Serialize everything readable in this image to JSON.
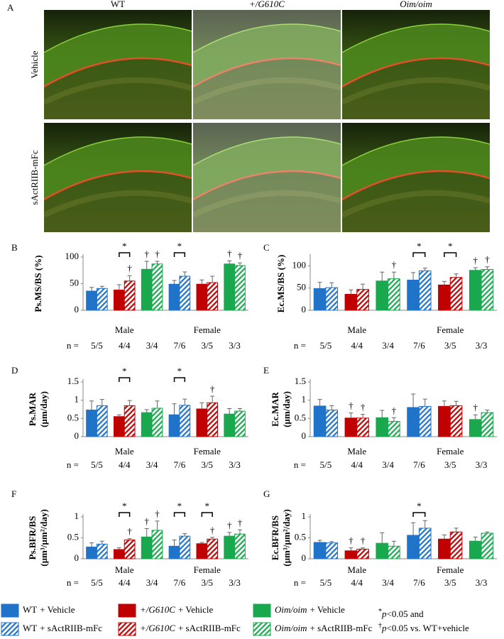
{
  "panel_a": {
    "label": "A",
    "columns": [
      {
        "text": "WT",
        "italic": false
      },
      {
        "text": "+/G610C",
        "italic": true
      },
      {
        "text": "Oim/oim",
        "italic": true
      }
    ],
    "rows": [
      "Vehicle",
      "sActRIIB-mFc"
    ]
  },
  "chart_data": [
    {
      "type": "bar",
      "label": "B",
      "ylabel": [
        "Ps.MS/BS (%)"
      ],
      "ylim": [
        0,
        100
      ],
      "yticks": [
        0,
        50,
        100
      ],
      "n_label": "n =",
      "categories": [
        "5/5",
        "4/4",
        "3/4",
        "7/6",
        "3/5",
        "3/3"
      ],
      "groups": [
        "Male",
        "Female"
      ],
      "colors": [
        "#1f73c8",
        "#c00000",
        "#1aa84e",
        "#1f73c8",
        "#c00000",
        "#1aa84e"
      ],
      "series": [
        {
          "values": [
            36,
            38,
            77,
            49,
            49,
            87
          ],
          "errors": [
            7,
            10,
            15,
            7,
            8,
            6
          ]
        },
        {
          "values": [
            41,
            55,
            87,
            64,
            52,
            84
          ],
          "errors": [
            4,
            10,
            5,
            8,
            12,
            5
          ],
          "hatch": true
        }
      ],
      "significance": [
        {
          "label": "*",
          "category": 1
        },
        {
          "label": "*",
          "category": 3
        }
      ],
      "daggers": [
        {
          "label": "†",
          "category": 1,
          "series": 1
        },
        {
          "label": "†",
          "category": 2,
          "series": 0
        },
        {
          "label": "†",
          "category": 2,
          "series": 1
        },
        {
          "label": "†",
          "category": 5,
          "series": 0
        },
        {
          "label": "†",
          "category": 5,
          "series": 1
        }
      ]
    },
    {
      "type": "bar",
      "label": "C",
      "ylabel": [
        "Ec.MS/BS (%)"
      ],
      "ylim": [
        0,
        120
      ],
      "yticks": [
        0,
        50,
        100
      ],
      "n_label": "n =",
      "categories": [
        "5/5",
        "4/4",
        "3/4",
        "7/6",
        "3/5",
        "3/3"
      ],
      "groups": [
        "Male",
        "Female"
      ],
      "colors": [
        "#1f73c8",
        "#c00000",
        "#1aa84e",
        "#1f73c8",
        "#c00000",
        "#1aa84e"
      ],
      "series": [
        {
          "values": [
            49,
            36,
            66,
            68,
            57,
            90
          ],
          "errors": [
            14,
            10,
            20,
            17,
            8,
            6
          ]
        },
        {
          "values": [
            51,
            47,
            71,
            89,
            74,
            92
          ],
          "errors": [
            11,
            12,
            15,
            6,
            8,
            6
          ],
          "hatch": true
        }
      ],
      "significance": [
        {
          "label": "*",
          "category": 3
        },
        {
          "label": "*",
          "category": 4
        }
      ],
      "daggers": [
        {
          "label": "†",
          "category": 2,
          "series": 1
        },
        {
          "label": "†",
          "category": 5,
          "series": 0
        },
        {
          "label": "†",
          "category": 5,
          "series": 1
        }
      ]
    },
    {
      "type": "bar",
      "label": "D",
      "ylabel": [
        "Ps.MAR",
        "(µm/day)"
      ],
      "ylim": [
        0,
        1.5
      ],
      "yticks": [
        0,
        0.5,
        1,
        1.5
      ],
      "n_label": "n =",
      "categories": [
        "5/5",
        "4/4",
        "3/4",
        "7/6",
        "3/5",
        "3/3"
      ],
      "groups": [
        "Male",
        "Female"
      ],
      "colors": [
        "#1f73c8",
        "#c00000",
        "#1aa84e",
        "#1f73c8",
        "#c00000",
        "#1aa84e"
      ],
      "series": [
        {
          "values": [
            0.73,
            0.55,
            0.66,
            0.6,
            0.76,
            0.62
          ],
          "errors": [
            0.25,
            0.05,
            0.08,
            0.3,
            0.17,
            0.15
          ]
        },
        {
          "values": [
            0.85,
            0.85,
            0.78,
            0.86,
            0.93,
            0.7
          ],
          "errors": [
            0.17,
            0.14,
            0.2,
            0.17,
            0.18,
            0.07
          ],
          "hatch": true
        }
      ],
      "significance": [
        {
          "label": "*",
          "category": 1
        },
        {
          "label": "*",
          "category": 3
        }
      ],
      "daggers": [
        {
          "label": "†",
          "category": 4,
          "series": 1
        }
      ]
    },
    {
      "type": "bar",
      "label": "E",
      "ylabel": [
        "Ec.MAR",
        "(µm/day)"
      ],
      "ylim": [
        0,
        1.5
      ],
      "yticks": [
        0,
        0.5,
        1,
        1.5
      ],
      "n_label": "n =",
      "categories": [
        "5/5",
        "4/4",
        "3/4",
        "7/6",
        "3/5",
        "3/3"
      ],
      "groups": [
        "Male",
        "Female"
      ],
      "colors": [
        "#1f73c8",
        "#c00000",
        "#1aa84e",
        "#1f73c8",
        "#c00000",
        "#1aa84e"
      ],
      "series": [
        {
          "values": [
            0.84,
            0.51,
            0.52,
            0.8,
            0.83,
            0.47
          ],
          "errors": [
            0.18,
            0.14,
            0.2,
            0.37,
            0.15,
            0.13
          ]
        },
        {
          "values": [
            0.73,
            0.51,
            0.42,
            0.83,
            0.85,
            0.66
          ],
          "errors": [
            0.12,
            0.1,
            0.1,
            0.2,
            0.12,
            0.07
          ],
          "hatch": true
        }
      ],
      "significance": [],
      "daggers": [
        {
          "label": "†",
          "category": 1,
          "series": 0
        },
        {
          "label": "†",
          "category": 1,
          "series": 1
        },
        {
          "label": "†",
          "category": 2,
          "series": 1
        },
        {
          "label": "†",
          "category": 5,
          "series": 0
        }
      ]
    },
    {
      "type": "bar",
      "label": "F",
      "ylabel": [
        "Ps.BFR/BS",
        "(µm³/µm²/day)"
      ],
      "ylim": [
        0,
        1
      ],
      "yticks": [
        0,
        0.5,
        1
      ],
      "n_label": "n =",
      "categories": [
        "5/5",
        "4/4",
        "3/4",
        "7/6",
        "3/5",
        "3/3"
      ],
      "groups": [
        "Male",
        "Female"
      ],
      "colors": [
        "#1f73c8",
        "#c00000",
        "#1aa84e",
        "#1f73c8",
        "#c00000",
        "#1aa84e"
      ],
      "series": [
        {
          "values": [
            0.28,
            0.22,
            0.52,
            0.3,
            0.36,
            0.54
          ],
          "errors": [
            0.1,
            0.04,
            0.2,
            0.15,
            0.03,
            0.09
          ]
        },
        {
          "values": [
            0.35,
            0.45,
            0.68,
            0.54,
            0.47,
            0.59
          ],
          "errors": [
            0.07,
            0.03,
            0.22,
            0.06,
            0.04,
            0.1
          ],
          "hatch": true
        }
      ],
      "significance": [
        {
          "label": "*",
          "category": 1
        },
        {
          "label": "*",
          "category": 3
        },
        {
          "label": "*",
          "category": 4
        }
      ],
      "daggers": [
        {
          "label": "†",
          "category": 1,
          "series": 1
        },
        {
          "label": "†",
          "category": 2,
          "series": 0
        },
        {
          "label": "†",
          "category": 2,
          "series": 1
        },
        {
          "label": "†",
          "category": 4,
          "series": 1
        },
        {
          "label": "†",
          "category": 5,
          "series": 0
        },
        {
          "label": "†",
          "category": 5,
          "series": 1
        }
      ]
    },
    {
      "type": "bar",
      "label": "G",
      "ylabel": [
        "Ec.BFR/BS",
        "(µm³/µm²/day)"
      ],
      "ylim": [
        0,
        1
      ],
      "yticks": [
        0,
        0.5,
        1
      ],
      "n_label": "n =",
      "categories": [
        "5/5",
        "4/4",
        "3/4",
        "7/6",
        "3/5",
        "3/3"
      ],
      "groups": [
        "Male",
        "Female"
      ],
      "colors": [
        "#1f73c8",
        "#c00000",
        "#1aa84e",
        "#1f73c8",
        "#c00000",
        "#1aa84e"
      ],
      "series": [
        {
          "values": [
            0.39,
            0.19,
            0.37,
            0.56,
            0.47,
            0.42
          ],
          "errors": [
            0.05,
            0.07,
            0.25,
            0.3,
            0.1,
            0.1
          ]
        },
        {
          "values": [
            0.38,
            0.23,
            0.3,
            0.73,
            0.64,
            0.61
          ],
          "errors": [
            0.03,
            0.03,
            0.12,
            0.18,
            0.09,
            0.03
          ],
          "hatch": true
        }
      ],
      "significance": [
        {
          "label": "*",
          "category": 3
        }
      ],
      "daggers": [
        {
          "label": "†",
          "category": 1,
          "series": 0
        },
        {
          "label": "†",
          "category": 1,
          "series": 1
        }
      ]
    }
  ],
  "legend": [
    {
      "genotype": "WT",
      "italic": false,
      "treatment": "+ Vehicle",
      "color": "#1f73c8",
      "hatch": false
    },
    {
      "genotype": "+/G610C",
      "italic": true,
      "treatment": "+ Vehicle",
      "color": "#c00000",
      "hatch": false
    },
    {
      "genotype": "Oim/oim",
      "italic": true,
      "treatment": "+ Vehicle",
      "color": "#1aa84e",
      "hatch": false
    },
    {
      "genotype": "WT",
      "italic": false,
      "treatment": "+ sActRIIB-mFc",
      "color": "#1f73c8",
      "hatch": true
    },
    {
      "genotype": "+/G610C",
      "italic": true,
      "treatment": "+ sActRIIB-mFc",
      "color": "#c00000",
      "hatch": true
    },
    {
      "genotype": "Oim/oim",
      "italic": true,
      "treatment": "+ sActRIIB-mFc",
      "color": "#1aa84e",
      "hatch": true
    }
  ],
  "footnote": [
    {
      "mark": "*",
      "italic": "p",
      "text": "<0.05 and"
    },
    {
      "mark": "†",
      "italic": "p",
      "text": "<0.05 vs. WT+vehicle"
    }
  ]
}
